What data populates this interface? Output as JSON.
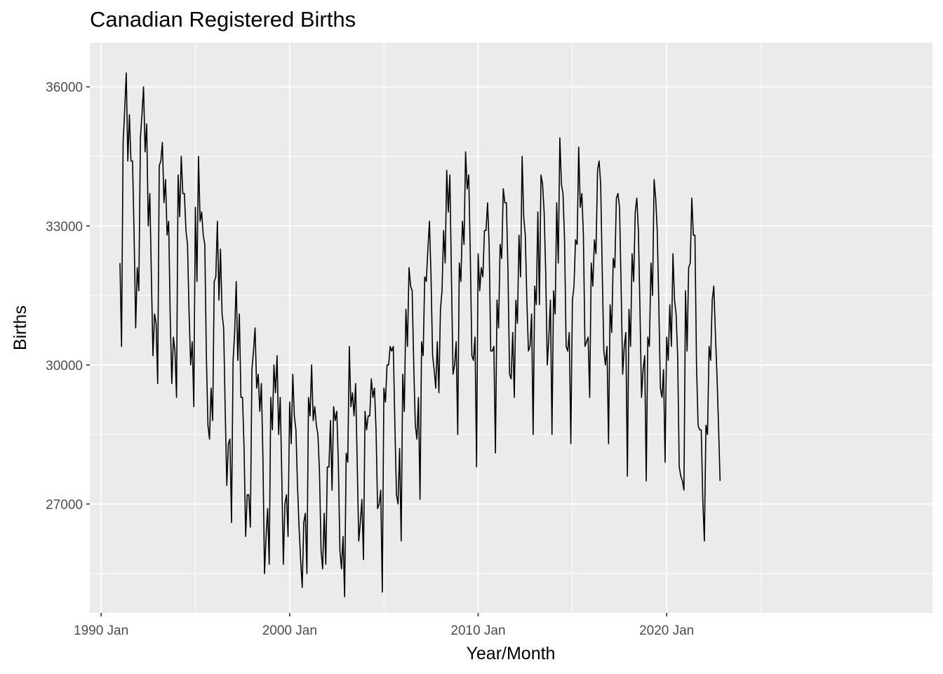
{
  "chart_data": {
    "type": "line",
    "title": "Canadian Registered Births",
    "xlabel": "Year/Month",
    "ylabel": "Births",
    "x_ticks": [
      {
        "value": 1990.0,
        "label": "1990 Jan"
      },
      {
        "value": 2000.0,
        "label": "2000 Jan"
      },
      {
        "value": 2010.0,
        "label": "2010 Jan"
      },
      {
        "value": 2020.0,
        "label": "2020 Jan"
      }
    ],
    "y_ticks": [
      {
        "value": 27000,
        "label": "27000"
      },
      {
        "value": 30000,
        "label": "30000"
      },
      {
        "value": 33000,
        "label": "33000"
      },
      {
        "value": 36000,
        "label": "36000"
      }
    ],
    "xlim": [
      1989.4,
      2034.1
    ],
    "ylim": [
      24650,
      36950
    ],
    "grid": true,
    "x_start": "1991 Jan",
    "series": [
      {
        "values": [
          32200,
          30400,
          34800,
          35500,
          36300,
          34400,
          35400,
          34400,
          34400,
          32800,
          30800,
          32100,
          31600,
          34900,
          35400,
          36000,
          34600,
          35200,
          33000,
          33700,
          31900,
          30200,
          31100,
          30900,
          29600,
          34300,
          34400,
          34800,
          33500,
          34000,
          32800,
          33100,
          31000,
          29600,
          30600,
          30300,
          29300,
          34100,
          33200,
          34500,
          33700,
          33700,
          32900,
          32600,
          31100,
          30000,
          30500,
          29100,
          33400,
          31800,
          34500,
          33100,
          33300,
          32800,
          32600,
          30200,
          28700,
          28400,
          29500,
          28800,
          31800,
          31900,
          33100,
          31400,
          32500,
          31100,
          30800,
          29000,
          27400,
          28300,
          28400,
          26600,
          30100,
          30700,
          31800,
          30100,
          31100,
          29300,
          29300,
          28200,
          26300,
          27200,
          27200,
          26500,
          29900,
          30300,
          30800,
          29500,
          29800,
          29000,
          29600,
          28000,
          25500,
          26300,
          26900,
          25700,
          29300,
          28600,
          30000,
          29400,
          30200,
          28500,
          29300,
          27600,
          25700,
          27000,
          27200,
          26300,
          29200,
          28300,
          29800,
          28900,
          28600,
          27400,
          26500,
          25800,
          25200,
          26600,
          26800,
          25500,
          29300,
          28900,
          30000,
          28800,
          29100,
          28700,
          28500,
          27700,
          26000,
          25600,
          26800,
          25700,
          27800,
          27800,
          28800,
          27300,
          29100,
          28800,
          29000,
          27900,
          26000,
          25600,
          26300,
          25000,
          28100,
          27900,
          30400,
          29100,
          29400,
          28900,
          29600,
          27900,
          26200,
          26600,
          27100,
          25800,
          29000,
          28600,
          28900,
          28900,
          29700,
          29300,
          29500,
          28600,
          26900,
          27000,
          27300,
          25100,
          29500,
          29200,
          30000,
          30000,
          30400,
          30300,
          30400,
          28700,
          27200,
          27000,
          28200,
          26200,
          29800,
          29000,
          31200,
          30400,
          32100,
          31700,
          31600,
          30000,
          28700,
          28400,
          29300,
          27100,
          30500,
          30200,
          31900,
          31800,
          32500,
          33100,
          31900,
          30200,
          29900,
          29500,
          30500,
          29400,
          31200,
          31600,
          32900,
          32200,
          34200,
          33300,
          34100,
          31900,
          29800,
          30000,
          30500,
          28500,
          32200,
          31800,
          33100,
          32600,
          34600,
          33800,
          34100,
          32400,
          30200,
          30100,
          30600,
          27800,
          32400,
          31600,
          32100,
          31900,
          32900,
          32900,
          33500,
          32600,
          30300,
          30300,
          30400,
          28100,
          31400,
          30800,
          32600,
          32300,
          33800,
          33500,
          33500,
          32000,
          29800,
          29700,
          30700,
          29300,
          31400,
          30900,
          32800,
          31900,
          34500,
          33200,
          32800,
          31400,
          30300,
          30400,
          31100,
          28500,
          31700,
          31300,
          33300,
          31300,
          34100,
          33900,
          33300,
          32000,
          30000,
          30600,
          31400,
          28500,
          31600,
          31100,
          33500,
          32200,
          34900,
          33900,
          33700,
          32700,
          30400,
          30300,
          30700,
          28300,
          31400,
          31700,
          32700,
          32600,
          34700,
          33400,
          33700,
          32800,
          30400,
          30500,
          30600,
          29300,
          32200,
          31700,
          32700,
          32400,
          34200,
          34400,
          33900,
          32000,
          30300,
          30000,
          30400,
          28300,
          31300,
          30700,
          32300,
          32100,
          33600,
          33700,
          33400,
          31700,
          29800,
          30400,
          30700,
          27600,
          31200,
          30400,
          32400,
          31800,
          33300,
          33600,
          32900,
          31200,
          29300,
          29900,
          30200,
          27500,
          30600,
          30400,
          32200,
          31500,
          34000,
          33600,
          32900,
          31300,
          29500,
          29300,
          29900,
          27900,
          30600,
          30100,
          31300,
          30400,
          32400,
          31400,
          31100,
          30200,
          27800,
          27600,
          27500,
          27300,
          31600,
          30300,
          32100,
          32200,
          33600,
          32800,
          32800,
          30000,
          28700,
          28600,
          28600,
          27100,
          26200,
          28700,
          28500,
          30400,
          30100,
          31400,
          31700,
          30700,
          29800,
          28700,
          27500
        ]
      }
    ]
  }
}
